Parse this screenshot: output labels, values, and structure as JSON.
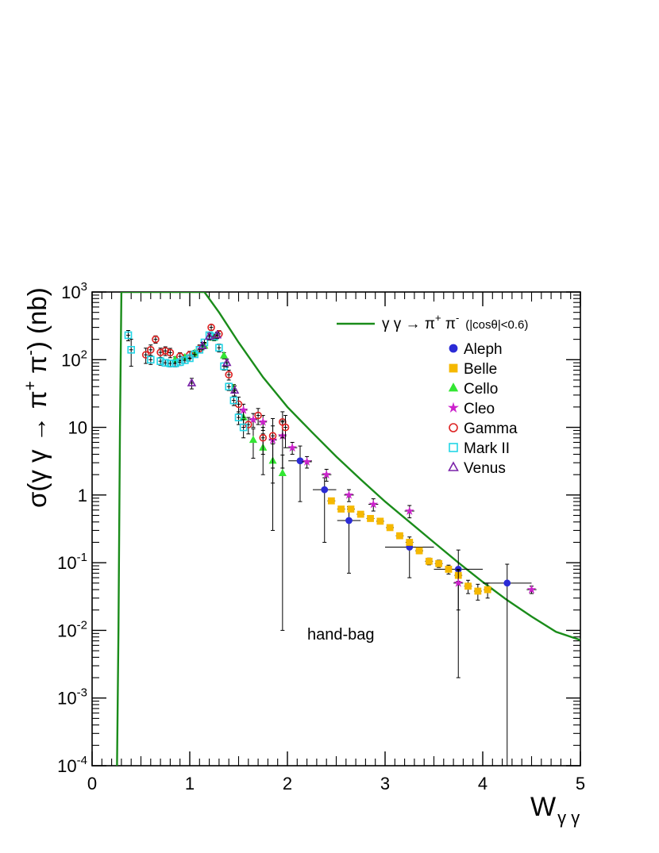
{
  "chart_data": {
    "type": "scatter",
    "xlabel": {
      "main": "W",
      "sub": "γ γ"
    },
    "ylabel": {
      "prefix": "σ(γ γ → π",
      "plus": "+",
      "mid": " π",
      "minus": "-",
      "suffix": ") (nb)"
    },
    "xlim": [
      0,
      5
    ],
    "ylim": [
      0.0001,
      1000
    ],
    "yscale": "log",
    "grid": false,
    "legend_position": "top-right",
    "annotation": "hand-bag",
    "x_ticks": [
      "0",
      "1",
      "2",
      "3",
      "4",
      "5"
    ],
    "y_ticks": [
      {
        "base": "10",
        "exp": "-4"
      },
      {
        "base": "10",
        "exp": "-3"
      },
      {
        "base": "10",
        "exp": "-2"
      },
      {
        "base": "10",
        "exp": "-1"
      },
      {
        "base": "1",
        "exp": ""
      },
      {
        "base": "10",
        "exp": ""
      },
      {
        "base": "10",
        "exp": "2"
      },
      {
        "base": "10",
        "exp": "3"
      }
    ],
    "curve": {
      "label_main": "γ γ → π",
      "label_plus": "+",
      "label_mid": " π",
      "label_minus": "-",
      "label_cut": "(|cosθ|<0.6)",
      "color": "#1a8c1a",
      "points": [
        [
          0.255,
          0.0001
        ],
        [
          0.27,
          0.01
        ],
        [
          0.285,
          10
        ],
        [
          0.3,
          1000
        ],
        [
          1.15,
          1000
        ],
        [
          1.3,
          500
        ],
        [
          1.5,
          180
        ],
        [
          1.75,
          55
        ],
        [
          2.0,
          20
        ],
        [
          2.25,
          8.5
        ],
        [
          2.5,
          3.7
        ],
        [
          2.75,
          1.7
        ],
        [
          3.0,
          0.8
        ],
        [
          3.25,
          0.4
        ],
        [
          3.5,
          0.2
        ],
        [
          3.75,
          0.1
        ],
        [
          4.0,
          0.052
        ],
        [
          4.25,
          0.028
        ],
        [
          4.5,
          0.016
        ],
        [
          4.75,
          0.0095
        ],
        [
          5.0,
          0.0072
        ]
      ]
    },
    "series": [
      {
        "name": "Aleph",
        "marker": "circle-filled",
        "color": "#2b2bd6",
        "points": [
          [
            2.13,
            3.2,
            0.12,
            2.4,
            2.1
          ],
          [
            2.38,
            1.2,
            0.12,
            1.0,
            0.6
          ],
          [
            2.63,
            0.42,
            0.12,
            0.35,
            0.25
          ],
          [
            3.25,
            0.17,
            0.25,
            0.11,
            0.07
          ],
          [
            3.75,
            0.08,
            0.25,
            0.078,
            0.074
          ],
          [
            4.25,
            0.05,
            0.25,
            0.04999,
            0.045
          ]
        ]
      },
      {
        "name": "Belle",
        "marker": "square-filled",
        "color": "#f5b800",
        "points": [
          [
            2.45,
            0.82,
            0.04,
            0.06,
            0.06
          ],
          [
            2.55,
            0.62,
            0.04,
            0.05,
            0.05
          ],
          [
            2.65,
            0.62,
            0.04,
            0.05,
            0.05
          ],
          [
            2.75,
            0.52,
            0.04,
            0.04,
            0.04
          ],
          [
            2.85,
            0.45,
            0.04,
            0.04,
            0.04
          ],
          [
            2.95,
            0.41,
            0.04,
            0.03,
            0.03
          ],
          [
            3.05,
            0.33,
            0.04,
            0.03,
            0.03
          ],
          [
            3.15,
            0.25,
            0.04,
            0.02,
            0.02
          ],
          [
            3.25,
            0.2,
            0.04,
            0.02,
            0.02
          ],
          [
            3.35,
            0.15,
            0.04,
            0.015,
            0.015
          ],
          [
            3.45,
            0.105,
            0.04,
            0.012,
            0.012
          ],
          [
            3.55,
            0.097,
            0.04,
            0.012,
            0.012
          ],
          [
            3.65,
            0.08,
            0.04,
            0.012,
            0.012
          ],
          [
            3.75,
            0.065,
            0.04,
            0.012,
            0.012
          ],
          [
            3.85,
            0.045,
            0.04,
            0.01,
            0.01
          ],
          [
            3.95,
            0.038,
            0.04,
            0.01,
            0.01
          ],
          [
            4.05,
            0.04,
            0.04,
            0.01,
            0.01
          ]
        ]
      },
      {
        "name": "Cello",
        "marker": "triangle-filled",
        "color": "#33e633",
        "points": [
          [
            0.85,
            100,
            0,
            10,
            10
          ],
          [
            0.95,
            108,
            0,
            10,
            10
          ],
          [
            1.05,
            125,
            0,
            12,
            12
          ],
          [
            1.15,
            160,
            0,
            15,
            15
          ],
          [
            1.25,
            210,
            0,
            20,
            20
          ],
          [
            1.35,
            115,
            0,
            12,
            12
          ],
          [
            1.45,
            38,
            0,
            5,
            5
          ],
          [
            1.55,
            14,
            0,
            3,
            3
          ],
          [
            1.65,
            6.5,
            0,
            3,
            3
          ],
          [
            1.75,
            5.0,
            0,
            3,
            3
          ],
          [
            1.85,
            3.2,
            0,
            2.9,
            2.5
          ],
          [
            1.95,
            2.1,
            0,
            2.09,
            1.8
          ]
        ]
      },
      {
        "name": "Cleo",
        "marker": "star",
        "color": "#cc22cc",
        "points": [
          [
            1.55,
            18,
            0.04,
            4,
            4
          ],
          [
            1.65,
            13,
            0.04,
            3,
            3
          ],
          [
            1.75,
            12,
            0.04,
            3,
            3
          ],
          [
            1.85,
            6.5,
            0.04,
            4,
            4
          ],
          [
            1.95,
            7.5,
            0.04,
            5,
            5
          ],
          [
            2.05,
            5.0,
            0.05,
            1,
            1
          ],
          [
            2.2,
            3.1,
            0.05,
            0.6,
            0.6
          ],
          [
            2.4,
            2.0,
            0.05,
            0.4,
            0.4
          ],
          [
            2.63,
            1.0,
            0.05,
            0.2,
            0.2
          ],
          [
            2.88,
            0.73,
            0.05,
            0.15,
            0.15
          ],
          [
            3.25,
            0.58,
            0.05,
            0.12,
            0.12
          ],
          [
            3.75,
            0.05,
            0.05,
            0.03,
            0.03
          ],
          [
            4.5,
            0.04,
            0.05,
            0.005,
            0.005
          ]
        ]
      },
      {
        "name": "Gamma",
        "marker": "circle-open",
        "color": "#dd2222",
        "points": [
          [
            0.55,
            118,
            0.02,
            30,
            30
          ],
          [
            0.6,
            140,
            0.02,
            25,
            25
          ],
          [
            0.65,
            200,
            0.02,
            25,
            25
          ],
          [
            0.7,
            128,
            0.02,
            20,
            20
          ],
          [
            0.75,
            135,
            0.02,
            20,
            20
          ],
          [
            0.8,
            127,
            0.02,
            20,
            20
          ],
          [
            0.9,
            112,
            0.02,
            15,
            15
          ],
          [
            1.0,
            118,
            0.02,
            15,
            15
          ],
          [
            1.1,
            145,
            0.02,
            20,
            20
          ],
          [
            1.22,
            300,
            0.02,
            30,
            30
          ],
          [
            1.3,
            240,
            0.02,
            30,
            30
          ],
          [
            1.4,
            60,
            0.02,
            10,
            10
          ],
          [
            1.5,
            22,
            0.02,
            6,
            6
          ],
          [
            1.6,
            11,
            0.02,
            3,
            3
          ],
          [
            1.7,
            15,
            0.02,
            4,
            4
          ],
          [
            1.75,
            7.0,
            0.02,
            3,
            3
          ],
          [
            1.85,
            7.5,
            0.02,
            6,
            6
          ],
          [
            1.95,
            12,
            0.02,
            5,
            5
          ],
          [
            1.98,
            10,
            0.02,
            5,
            5
          ]
        ]
      },
      {
        "name": "Mark II",
        "marker": "square-open",
        "color": "#22d5e6",
        "points": [
          [
            0.37,
            230,
            0.02,
            40,
            40
          ],
          [
            0.4,
            140,
            0.02,
            60,
            60
          ],
          [
            0.6,
            100,
            0.02,
            15,
            15
          ],
          [
            0.7,
            95,
            0.02,
            12,
            12
          ],
          [
            0.75,
            90,
            0.02,
            10,
            10
          ],
          [
            0.8,
            88,
            0.02,
            10,
            10
          ],
          [
            0.85,
            88,
            0.02,
            10,
            10
          ],
          [
            0.9,
            92,
            0.02,
            10,
            10
          ],
          [
            0.95,
            98,
            0.02,
            10,
            10
          ],
          [
            1.0,
            105,
            0.02,
            10,
            10
          ],
          [
            1.05,
            120,
            0.02,
            12,
            12
          ],
          [
            1.1,
            140,
            0.02,
            15,
            15
          ],
          [
            1.15,
            180,
            0.02,
            20,
            20
          ],
          [
            1.2,
            230,
            0.02,
            25,
            25
          ],
          [
            1.25,
            220,
            0.02,
            25,
            25
          ],
          [
            1.3,
            150,
            0.02,
            20,
            20
          ],
          [
            1.35,
            80,
            0.02,
            10,
            10
          ],
          [
            1.4,
            40,
            0.02,
            5,
            5
          ],
          [
            1.45,
            25,
            0.02,
            4,
            4
          ],
          [
            1.5,
            14,
            0.02,
            3,
            3
          ],
          [
            1.55,
            10,
            0.02,
            3,
            3
          ]
        ]
      },
      {
        "name": "Venus",
        "marker": "triangle-open",
        "color": "#7a22a8",
        "points": [
          [
            1.02,
            45,
            0.02,
            8,
            8
          ],
          [
            1.13,
            160,
            0.02,
            20,
            20
          ],
          [
            1.2,
            220,
            0.02,
            25,
            25
          ],
          [
            1.28,
            230,
            0.02,
            25,
            25
          ],
          [
            1.38,
            90,
            0.02,
            12,
            12
          ],
          [
            1.46,
            35,
            0.02,
            6,
            6
          ]
        ]
      }
    ]
  }
}
